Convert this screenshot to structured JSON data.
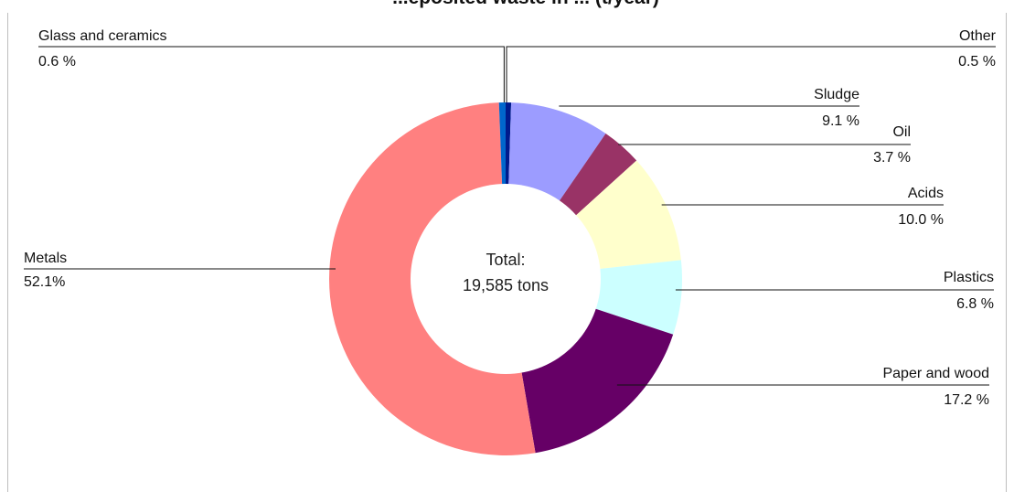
{
  "chart_data": {
    "type": "pie",
    "title": "...eposited waste in ... (t/year)",
    "center_label": [
      "Total:",
      "19,585 tons"
    ],
    "slices": [
      {
        "name": "Other",
        "value": 0.5,
        "label": "0.5 %",
        "color": "#001a8c"
      },
      {
        "name": "Sludge",
        "value": 9.1,
        "label": "9.1 %",
        "color": "#9c9cff"
      },
      {
        "name": "Oil",
        "value": 3.7,
        "label": "3.7 %",
        "color": "#993366"
      },
      {
        "name": "Acids",
        "value": 10.0,
        "label": "10.0 %",
        "color": "#ffffcc"
      },
      {
        "name": "Plastics",
        "value": 6.8,
        "label": "6.8 %",
        "color": "#ccffff"
      },
      {
        "name": "Paper and wood",
        "value": 17.2,
        "label": "17.2 %",
        "color": "#660066"
      },
      {
        "name": "Metals",
        "value": 52.1,
        "label": "52.1%",
        "color": "#ff8080"
      },
      {
        "name": "Glass and ceramics",
        "value": 0.6,
        "label": "0.6 %",
        "color": "#0066cc"
      }
    ]
  }
}
